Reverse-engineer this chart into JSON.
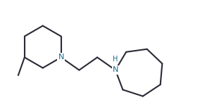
{
  "bg_color": "#ffffff",
  "line_color": "#2a2a35",
  "atom_color": "#1a6b8a",
  "line_width": 1.5,
  "font_size_N": 8.0,
  "font_size_H": 7.0,
  "fig_width": 3.01,
  "fig_height": 1.42,
  "dpi": 100,
  "xlim": [
    0.0,
    10.0
  ],
  "ylim": [
    0.0,
    4.7
  ]
}
